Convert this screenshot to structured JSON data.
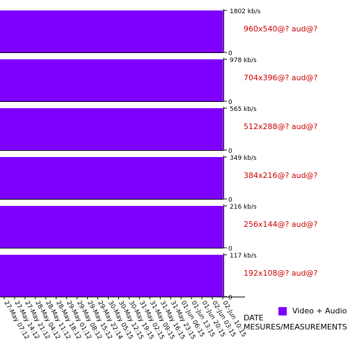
{
  "chart_data": {
    "type": "bar",
    "xlabel_lines": [
      "DATE",
      "MESURES/MEASUREMENTS"
    ],
    "legend": {
      "label": "Video + Audio",
      "color": "#7f00ff"
    },
    "panels": [
      {
        "label": "960x540@? aud@?",
        "max_label": "1802 kb/s",
        "min_label": "0",
        "max": 1802,
        "values": [
          1802,
          1802,
          1802,
          1802,
          1802,
          1802,
          1802,
          1802,
          1802,
          1802,
          1802,
          1802,
          1802,
          1802,
          1802,
          1802,
          1802,
          1802,
          1802,
          1802,
          1802,
          1802,
          1802,
          1802,
          1802,
          1802,
          1802,
          1802,
          1802,
          1802,
          1802,
          1802
        ]
      },
      {
        "label": "704x396@? aud@?",
        "max_label": "978 kb/s",
        "min_label": "0",
        "max": 978,
        "values": [
          978,
          978,
          978,
          978,
          978,
          978,
          978,
          978,
          978,
          978,
          978,
          978,
          978,
          978,
          978,
          978,
          978,
          978,
          978,
          978,
          978,
          978,
          978,
          978,
          978,
          978,
          978,
          978,
          978,
          978,
          978,
          978
        ]
      },
      {
        "label": "512x288@? aud@?",
        "max_label": "565 kb/s",
        "min_label": "0",
        "max": 565,
        "values": [
          565,
          565,
          565,
          565,
          565,
          565,
          565,
          565,
          565,
          565,
          565,
          565,
          565,
          565,
          565,
          565,
          565,
          565,
          565,
          565,
          565,
          565,
          565,
          565,
          565,
          565,
          565,
          565,
          565,
          565,
          565,
          565
        ]
      },
      {
        "label": "384x216@? aud@?",
        "max_label": "349 kb/s",
        "min_label": "0",
        "max": 349,
        "values": [
          349,
          349,
          349,
          349,
          349,
          349,
          349,
          349,
          349,
          349,
          349,
          349,
          349,
          349,
          349,
          349,
          349,
          349,
          349,
          349,
          349,
          349,
          349,
          349,
          349,
          349,
          349,
          349,
          349,
          349,
          349,
          349
        ]
      },
      {
        "label": "256x144@? aud@?",
        "max_label": "216 kb/s",
        "min_label": "0",
        "max": 216,
        "values": [
          216,
          216,
          216,
          216,
          216,
          216,
          216,
          216,
          216,
          216,
          216,
          216,
          216,
          216,
          216,
          216,
          216,
          216,
          216,
          216,
          216,
          216,
          216,
          216,
          216,
          216,
          216,
          216,
          216,
          216,
          216,
          216
        ]
      },
      {
        "label": "192x108@? aud@?",
        "max_label": "117 kb/s",
        "min_label": "0",
        "max": 117,
        "values": [
          117,
          117,
          117,
          117,
          117,
          117,
          117,
          117,
          117,
          117,
          117,
          117,
          117,
          117,
          117,
          117,
          117,
          117,
          117,
          117,
          117,
          117,
          117,
          117,
          117,
          117,
          117,
          117,
          117,
          117,
          117,
          117
        ]
      }
    ],
    "x_ticks": [
      "27-May 07:12",
      "27-May 14:12",
      "27-May 21:12",
      "28-May 04:12",
      "28-May 11:12",
      "28-May 18:12",
      "29-May 01:12",
      "29-May 08:12",
      "29-May 15:12",
      "29-May 22:14",
      "30-May 05:15",
      "30-May 12:15",
      "30-May 19:15",
      "31-May 02:15",
      "31-May 09:15",
      "31-May 16:15",
      "31-May 23:15",
      "01-Jun 06:15",
      "01-Jun 13:15",
      "01-Jun 20:15",
      "02-Jun 03:15",
      "02-Jun 10:15"
    ],
    "panel_label_color": "#cc0000"
  }
}
